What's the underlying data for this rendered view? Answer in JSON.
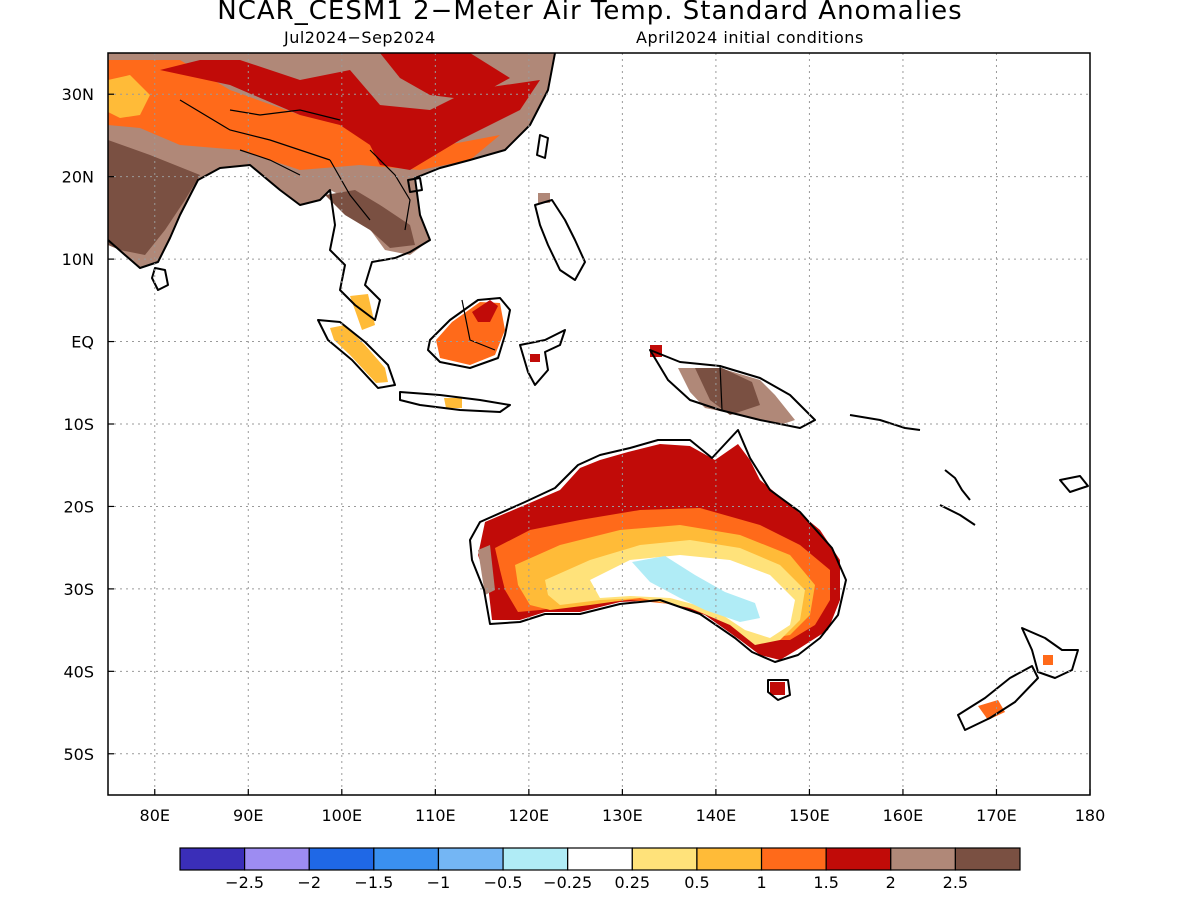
{
  "title": "NCAR_CESM1 2−Meter Air Temp. Standard Anomalies",
  "subtitle_period": "Jul2024−Sep2024",
  "subtitle_init": "April2024 initial conditions",
  "map": {
    "lat_labels": [
      "30N",
      "20N",
      "10N",
      "EQ",
      "10S",
      "20S",
      "30S",
      "40S",
      "50S"
    ],
    "lon_labels": [
      "80E",
      "90E",
      "100E",
      "110E",
      "120E",
      "130E",
      "140E",
      "150E",
      "160E",
      "170E",
      "180"
    ],
    "lat_range": [
      -55,
      35
    ],
    "lon_range": [
      75,
      180
    ],
    "grid": "dotted"
  },
  "colorbar": {
    "colors": [
      "#3a2eb8",
      "#9d8cf2",
      "#1f68e6",
      "#3a90f0",
      "#74b6f4",
      "#b0ecf6",
      "#ffffff",
      "#ffe27a",
      "#ffbb38",
      "#ff6a1a",
      "#c10b08",
      "#b08878",
      "#7a5042"
    ],
    "labels": [
      "−2.5",
      "−2",
      "−1.5",
      "−1",
      "−0.5",
      "−0.25",
      "0.25",
      "0.5",
      "1",
      "1.5",
      "2",
      "2.5"
    ]
  }
}
